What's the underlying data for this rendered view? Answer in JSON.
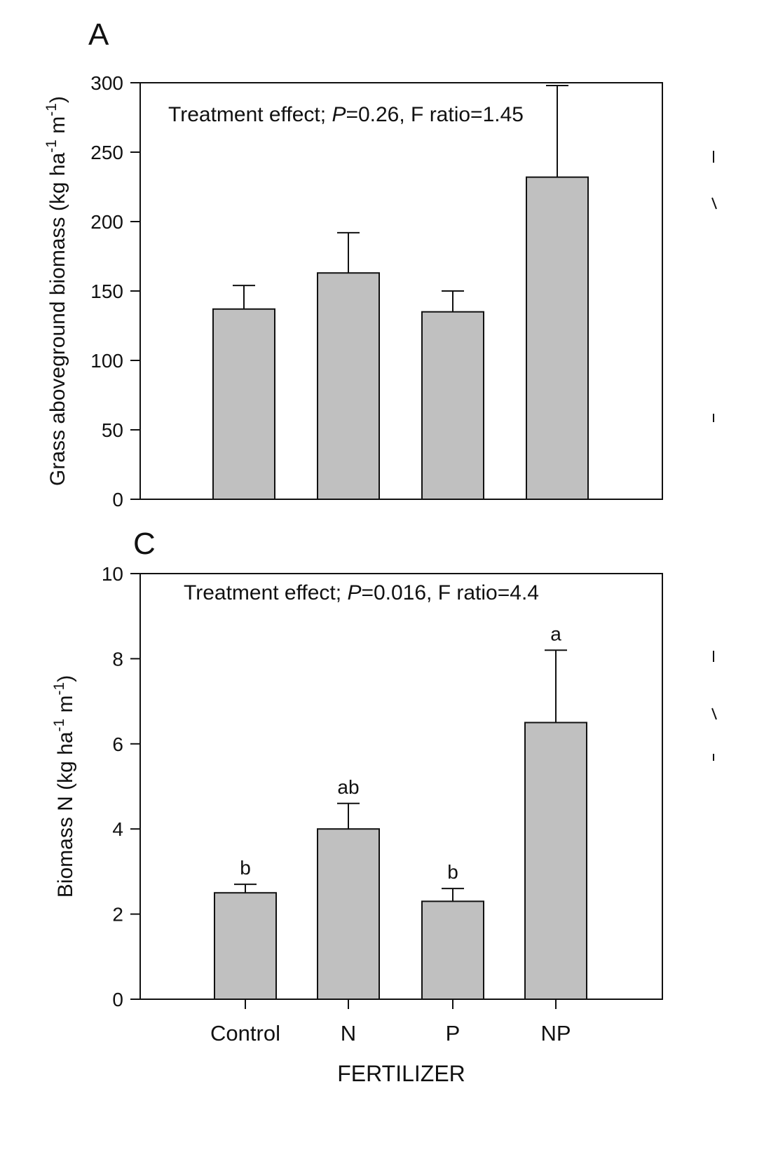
{
  "colors": {
    "bar_fill": "#c0c0c0",
    "stroke": "#111111",
    "background": "#ffffff"
  },
  "chart_data": [
    {
      "panel": "A",
      "type": "bar",
      "categories": [
        "Control",
        "N",
        "P",
        "NP"
      ],
      "values": [
        137,
        163,
        135,
        232
      ],
      "error_upper": [
        154,
        192,
        150,
        298
      ],
      "significance_letters": [],
      "ylabel": "Grass aboveground biomass (kg ha-1 m-1)",
      "ylabel_parts": {
        "pre": "Grass aboveground biomass (kg ha",
        "sup1": "-1",
        "mid": " m",
        "sup2": "-1",
        "post": ")"
      },
      "ylim": [
        0,
        300
      ],
      "yticks": [
        0,
        50,
        100,
        150,
        200,
        250,
        300
      ],
      "annotation": {
        "pre": "Treatment effect; ",
        "italic": "P",
        "post": "=0.26, F ratio=1.45"
      },
      "xlabel": "",
      "grid": false
    },
    {
      "panel": "C",
      "type": "bar",
      "categories": [
        "Control",
        "N",
        "P",
        "NP"
      ],
      "values": [
        2.5,
        4.0,
        2.3,
        6.5
      ],
      "error_upper": [
        2.7,
        4.6,
        2.6,
        8.2
      ],
      "significance_letters": [
        "b",
        "ab",
        "b",
        "a"
      ],
      "ylabel": "Biomass N (kg ha-1 m-1)",
      "ylabel_parts": {
        "pre": "Biomass N (kg ha",
        "sup1": "-1",
        "mid": " m",
        "sup2": "-1",
        "post": ")"
      },
      "ylim": [
        0,
        10
      ],
      "yticks": [
        0,
        2,
        4,
        6,
        8,
        10
      ],
      "annotation": {
        "pre": "Treatment effect; ",
        "italic": "P",
        "post": "=0.016, F ratio=4.4"
      },
      "xlabel": "FERTILIZER",
      "grid": false
    }
  ]
}
